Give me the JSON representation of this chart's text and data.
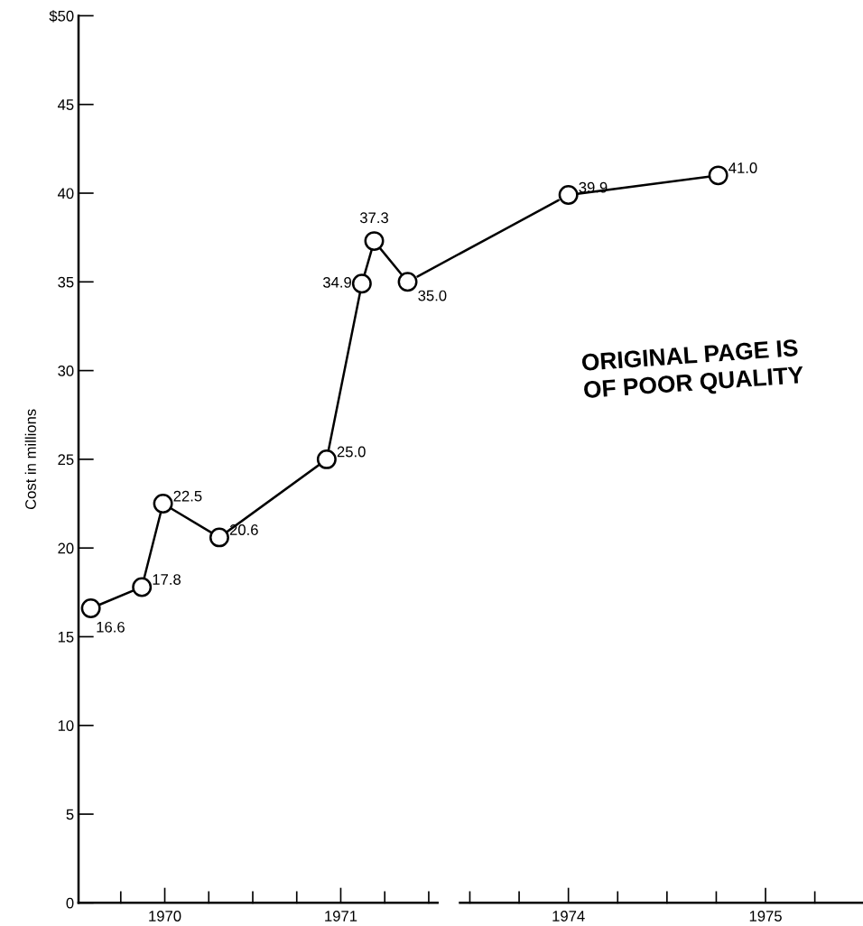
{
  "chart_data": [
    {
      "type": "line",
      "ylabel": "Cost in millions",
      "x": [
        1969.58,
        1969.87,
        1969.99,
        1970.31,
        1970.92,
        1971.12,
        1971.19,
        1971.38
      ],
      "series": [
        {
          "color": "#000000",
          "values": [
            16.6,
            17.8,
            22.5,
            20.6,
            25.0,
            34.9,
            37.3,
            35.0
          ],
          "value_labels": [
            "16.6",
            "17.8",
            "22.5",
            "20.6",
            "25.0",
            "34.9",
            "37.3",
            "35.0"
          ]
        }
      ],
      "xlim": [
        1969.51,
        1971.55
      ],
      "xticks": [
        1970,
        1971
      ],
      "ylim": [
        0,
        50
      ],
      "yticks": [
        0,
        5,
        10,
        15,
        20,
        25,
        30,
        35,
        40,
        45,
        {
          "value": 50,
          "label": "$50"
        }
      ],
      "marker": "circle",
      "line_style": "solid",
      "grid": false
    },
    {
      "type": "line",
      "x": [
        1974.0,
        1974.76
      ],
      "series": [
        {
          "color": "#000000",
          "values": [
            39.9,
            41.0
          ],
          "value_labels": [
            "39.9",
            "41.0"
          ]
        }
      ],
      "xlim": [
        1973.45,
        1975.49
      ],
      "xticks": [
        1974,
        1975
      ],
      "ylim": [
        0,
        50
      ],
      "tick_labels": "x",
      "marker": "circle",
      "line_style": "solid",
      "grid": false,
      "annotations": [
        "ORIGINAL PAGE IS\nOF POOR QUALITY"
      ]
    }
  ]
}
